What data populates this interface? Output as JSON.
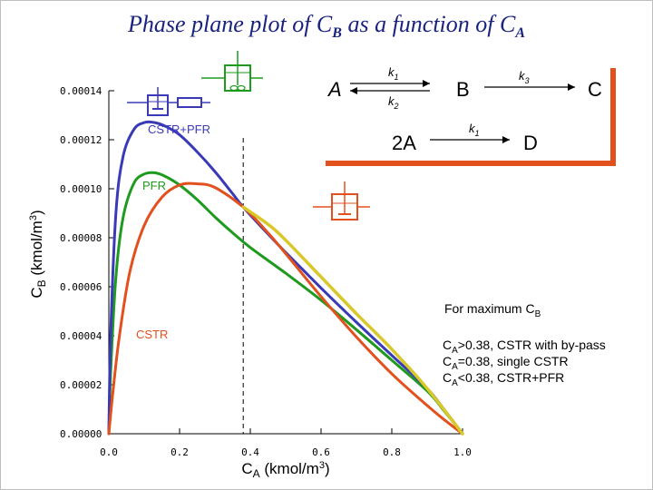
{
  "title": {
    "prefix": "Phase plane plot of C",
    "sub1": "B",
    "middle": " as a function of C",
    "sub2": "A"
  },
  "chart_data": {
    "type": "line",
    "xlabel": "C",
    "xlabel_sub": "A",
    "xlabel_unit": " (kmol/m",
    "xlabel_sup": "3",
    "xlabel_end": ")",
    "ylabel": "C",
    "ylabel_sub": "B",
    "ylabel_unit": " (kmol/m",
    "ylabel_sup": "3",
    "ylabel_end": ")",
    "xlim": [
      0,
      1.0
    ],
    "ylim": [
      0,
      0.00014
    ],
    "x_ticks": [
      0.0,
      0.2,
      0.4,
      0.6,
      0.8,
      1.0
    ],
    "x_tick_labels": [
      "0.0",
      "0.2",
      "0.4",
      "0.6",
      "0.8",
      "1.0"
    ],
    "y_ticks": [
      0,
      2e-05,
      4e-05,
      6e-05,
      8e-05,
      0.0001,
      0.00012,
      0.00014
    ],
    "y_tick_labels": [
      "0.00000",
      "0.00002",
      "0.00004",
      "0.00006",
      "0.00008",
      "0.00010",
      "0.00012",
      "0.00014"
    ],
    "grid": false,
    "series": [
      {
        "name": "CSTR+PFR",
        "color": "#3a3ab8",
        "x": [
          0.0,
          0.005,
          0.02,
          0.04,
          0.07,
          0.1,
          0.13,
          0.16,
          0.2,
          0.25,
          0.3,
          0.35,
          0.38,
          0.45,
          0.5,
          0.6,
          0.7,
          0.8,
          0.9,
          0.95,
          1.0
        ],
        "y": [
          0.0,
          4e-05,
          9e-05,
          0.000113,
          0.000124,
          0.000127,
          0.000127,
          0.0001255,
          0.000122,
          0.000115,
          0.000107,
          9.8e-05,
          9.25e-05,
          8.15e-05,
          7.4e-05,
          5.95e-05,
          4.55e-05,
          3.2e-05,
          1.85e-05,
          9.5e-06,
          0.0
        ]
      },
      {
        "name": "PFR",
        "color": "#1e9a1e",
        "x": [
          0.0,
          0.005,
          0.02,
          0.04,
          0.07,
          0.1,
          0.13,
          0.16,
          0.2,
          0.25,
          0.3,
          0.35,
          0.4,
          0.5,
          0.6,
          0.7,
          0.8,
          0.9,
          0.95,
          1.0
        ],
        "y": [
          0.0,
          2.5e-05,
          6.4e-05,
          8.8e-05,
          0.000102,
          0.000106,
          0.0001065,
          0.000105,
          0.0001015,
          9.55e-05,
          8.85e-05,
          8.2e-05,
          7.6e-05,
          6.55e-05,
          5.45e-05,
          4.25e-05,
          3e-05,
          1.75e-05,
          9e-06,
          0.0
        ]
      },
      {
        "name": "CSTR",
        "color": "#e2501e",
        "x": [
          0.0,
          0.01,
          0.03,
          0.06,
          0.1,
          0.15,
          0.2,
          0.25,
          0.3,
          0.38,
          0.45,
          0.5,
          0.6,
          0.7,
          0.8,
          0.9,
          0.95,
          1.0
        ],
        "y": [
          0.0,
          1.5e-05,
          4e-05,
          6.65e-05,
          8.5e-05,
          9.65e-05,
          0.0001015,
          0.000102,
          0.0001005,
          9.25e-05,
          8.2e-05,
          7.35e-05,
          5.6e-05,
          3.95e-05,
          2.45e-05,
          1.15e-05,
          5.5e-06,
          0.0
        ]
      },
      {
        "name": "CSTR with by-pass",
        "color": "#d8c82a",
        "x": [
          0.38,
          0.45,
          0.5,
          0.6,
          0.7,
          0.8,
          0.9,
          1.0
        ],
        "y": [
          9.25e-05,
          8.55e-05,
          7.9e-05,
          6.4e-05,
          4.9e-05,
          3.45e-05,
          1.85e-05,
          0.0
        ]
      }
    ],
    "vline_x": 0.38,
    "annotations": {
      "cstr_pfr": "CSTR+PFR",
      "pfr": "PFR",
      "cstr": "CSTR",
      "max_heading": "For maximum C",
      "max_heading_sub": "B",
      "line1_pre": "C",
      "line1_sub": "A",
      "line1_post": ">0.38, CSTR with by-pass",
      "line2_pre": "C",
      "line2_sub": "A",
      "line2_post": "=0.38, single CSTR",
      "line3_pre": "C",
      "line3_sub": "A",
      "line3_post": "<0.38, CSTR+PFR"
    }
  },
  "reaction": {
    "A": "A",
    "B": "B",
    "C": "C",
    "twoA": "2A",
    "D": "D",
    "k1_top": "k",
    "k1_top_sub": "1",
    "k2": "k",
    "k2_sub": "2",
    "k3": "k",
    "k3_sub": "3",
    "k1_bottom": "k",
    "k1_bottom_sub": "1"
  },
  "colors": {
    "title": "#1a237e",
    "box_shadow": "#e2501e",
    "vline": "#000000"
  },
  "icons": [
    "reactor-cstr-pfr-icon",
    "reactor-pfr-icon",
    "reactor-cstr-icon"
  ]
}
